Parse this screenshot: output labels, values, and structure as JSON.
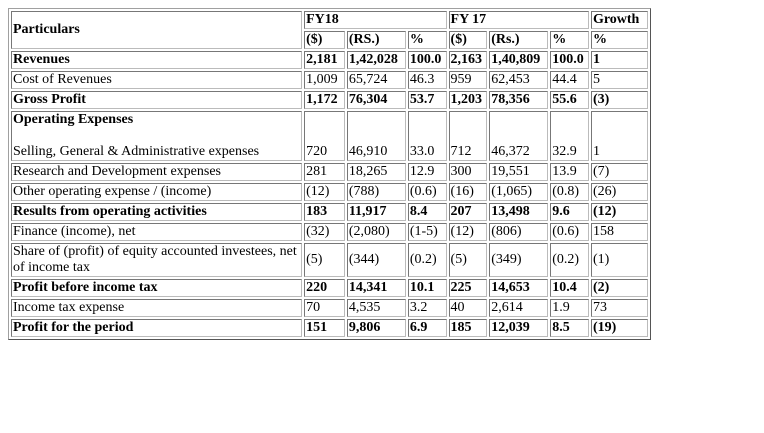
{
  "header": {
    "particulars": "Particulars",
    "groups": [
      "FY18",
      "FY 17",
      "Growth"
    ],
    "units": [
      "($)",
      "(RS.)",
      "%",
      "($)",
      "(Rs.)",
      "%",
      "%"
    ]
  },
  "table": {
    "rows": [
      {
        "label": "Revenues",
        "bold": true,
        "cells": [
          "2,181",
          "1,42,028",
          "100.0",
          "2,163",
          "1,40,809",
          "100.0",
          "1"
        ]
      },
      {
        "label": "Cost of Revenues",
        "bold": false,
        "cells": [
          "1,009",
          "65,724",
          "46.3",
          "959",
          "62,453",
          "44.4",
          "5"
        ]
      },
      {
        "label": "Gross Profit",
        "bold": true,
        "cells": [
          "1,172",
          "76,304",
          "53.7",
          "1,203",
          "78,356",
          "55.6",
          "(3)"
        ]
      },
      {
        "heading": "Operating Expenses",
        "label": "Selling, General & Administrative expenses",
        "bold": false,
        "cells": [
          "720",
          "46,910",
          "33.0",
          "712",
          "46,372",
          "32.9",
          "1"
        ]
      },
      {
        "label": "Research and Development expenses",
        "bold": false,
        "cells": [
          "281",
          "18,265",
          "12.9",
          "300",
          "19,551",
          "13.9",
          "(7)"
        ]
      },
      {
        "label": "Other operating expense / (income)",
        "bold": false,
        "cells": [
          "(12)",
          "(788)",
          "(0.6)",
          "(16)",
          "(1,065)",
          "(0.8)",
          "(26)"
        ]
      },
      {
        "label": "Results from operating activities",
        "bold": true,
        "cells": [
          "183",
          "11,917",
          "8.4",
          "207",
          "13,498",
          "9.6",
          "(12)"
        ]
      },
      {
        "label": "Finance (income), net",
        "bold": false,
        "cells": [
          "(32)",
          "(2,080)",
          "(1-5)",
          "(12)",
          "(806)",
          "(0.6)",
          "158"
        ]
      },
      {
        "label": "Share of (profit) of equity accounted investees, net of income tax",
        "bold": false,
        "cells": [
          "(5)",
          "(344)",
          "(0.2)",
          "(5)",
          "(349)",
          "(0.2)",
          "(1)"
        ]
      },
      {
        "label": "Profit before income tax",
        "bold": true,
        "cells": [
          "220",
          "14,341",
          "10.1",
          "225",
          "14,653",
          "10.4",
          "(2)"
        ]
      },
      {
        "label": "Income tax expense",
        "bold": false,
        "cells": [
          "70",
          "4,535",
          "3.2",
          "40",
          "2,614",
          "1.9",
          "73"
        ]
      },
      {
        "label": "Profit for the period",
        "bold": true,
        "cells": [
          "151",
          "9,806",
          "6.9",
          "185",
          "12,039",
          "8.5",
          "(19)"
        ]
      }
    ]
  }
}
